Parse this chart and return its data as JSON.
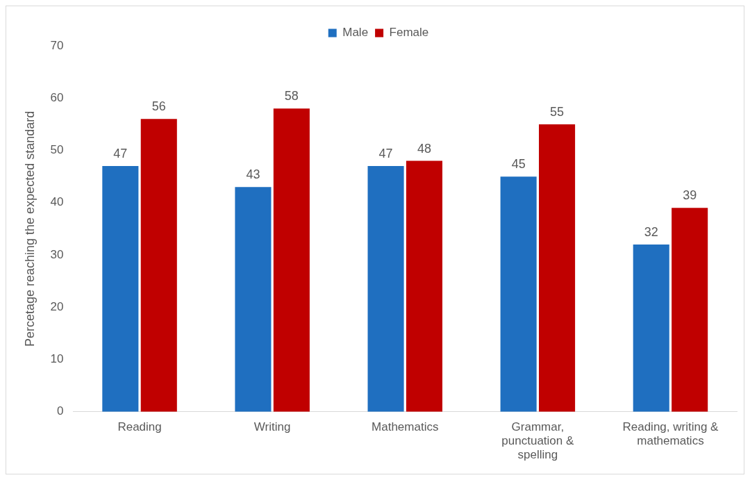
{
  "chart_data": {
    "type": "bar",
    "ylabel": "Percetage reaching the expected standard",
    "categories": [
      "Reading",
      "Writing",
      "Mathematics",
      "Grammar, punctuation & spelling",
      "Reading, writing & mathematics"
    ],
    "series": [
      {
        "name": "Male",
        "color": "#1f6fc0",
        "values": [
          47,
          43,
          47,
          45,
          32
        ]
      },
      {
        "name": "Female",
        "color": "#c00000",
        "values": [
          56,
          58,
          48,
          55,
          39
        ]
      }
    ],
    "ylim": [
      0,
      70
    ],
    "yticks": [
      0,
      10,
      20,
      30,
      40,
      50,
      60,
      70
    ],
    "grid": false,
    "legend": "top",
    "data_labels": true
  }
}
